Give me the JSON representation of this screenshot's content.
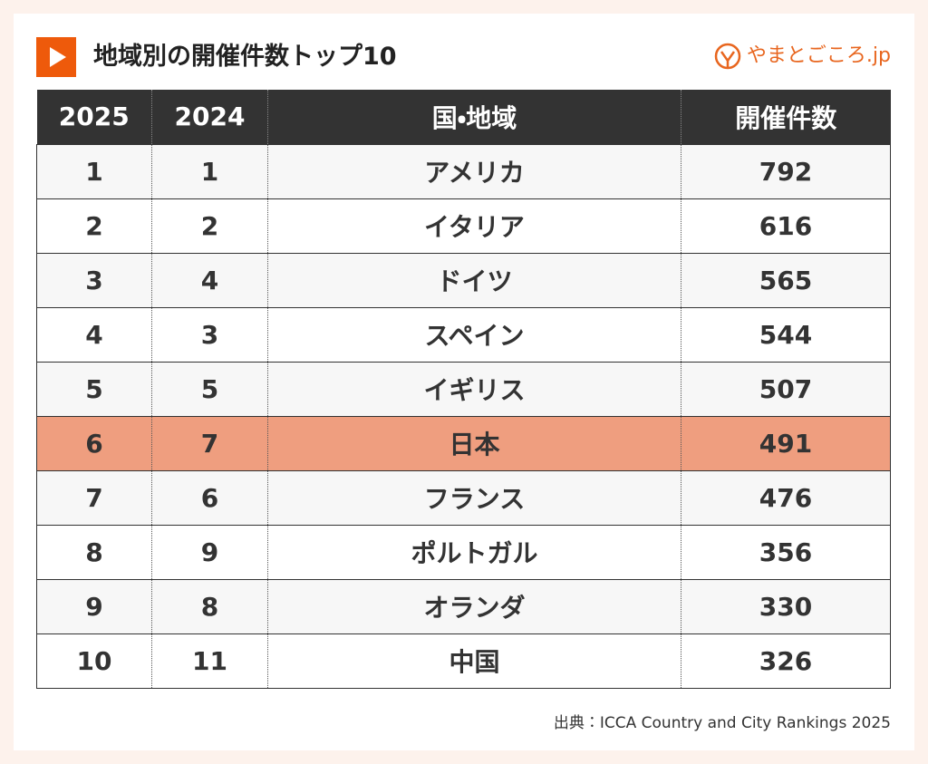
{
  "header": {
    "title": "地域別の開催件数トップ10",
    "logo": "やまとごころ.jp"
  },
  "table": {
    "columns": [
      "2025",
      "2024",
      "国・地域",
      "開催件数"
    ],
    "rows": [
      [
        1,
        1,
        "アメリカ",
        792
      ],
      [
        2,
        2,
        "イタリア",
        616
      ],
      [
        3,
        4,
        "ドイツ",
        565
      ],
      [
        4,
        3,
        "スペイン",
        544
      ],
      [
        5,
        5,
        "イギリス",
        507
      ],
      [
        6,
        7,
        "日本",
        491
      ],
      [
        7,
        6,
        "フランス",
        476
      ],
      [
        8,
        9,
        "ポルトガル",
        356
      ],
      [
        9,
        8,
        "オランダ",
        330
      ],
      [
        10,
        11,
        "中国",
        326
      ]
    ]
  },
  "source": "出典：ICCA Country and City Rankings 2025"
}
